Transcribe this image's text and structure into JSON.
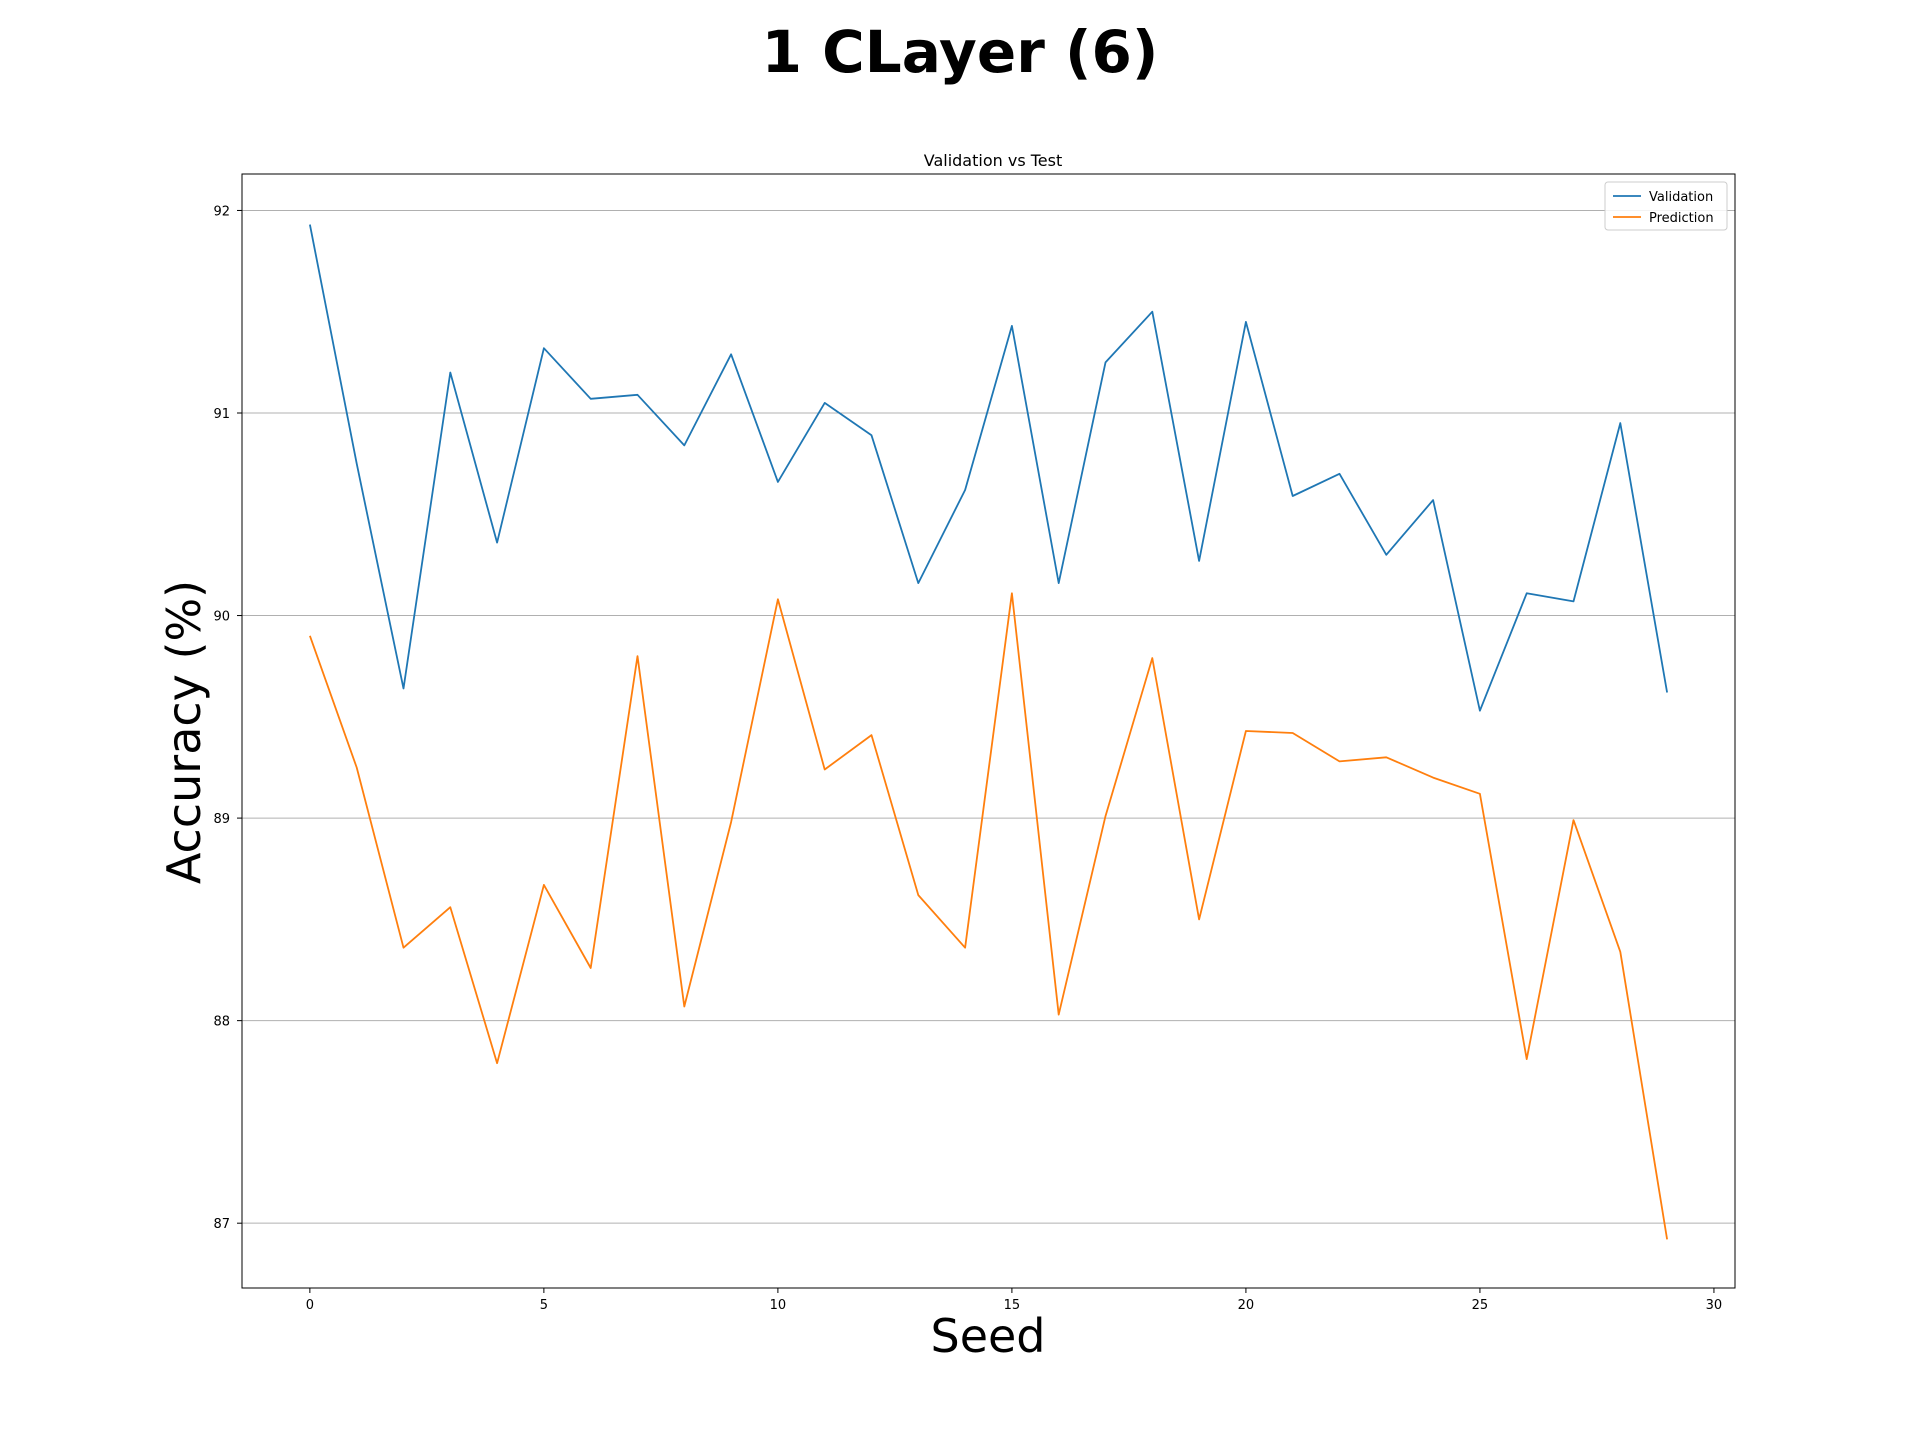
{
  "figure": {
    "suptitle": "1 CLayer (6)"
  },
  "chart_data": {
    "type": "line",
    "title": "Validation vs Test",
    "xlabel": "Seed",
    "ylabel": "Accuracy (%)",
    "xlim": [
      -1.45,
      30.45
    ],
    "ylim": [
      86.68,
      92.18
    ],
    "xticks": [
      0,
      5,
      10,
      15,
      20,
      25,
      30
    ],
    "yticks": [
      87,
      88,
      89,
      90,
      91,
      92
    ],
    "grid": "y",
    "legend_position": "top-right",
    "x": [
      0,
      1,
      2,
      3,
      4,
      5,
      6,
      7,
      8,
      9,
      10,
      11,
      12,
      13,
      14,
      15,
      16,
      17,
      18,
      19,
      20,
      21,
      22,
      23,
      24,
      25,
      26,
      27,
      28,
      29
    ],
    "series": [
      {
        "name": "Validation",
        "color": "#1f77b4",
        "values": [
          91.93,
          90.75,
          89.64,
          91.2,
          90.36,
          91.32,
          91.07,
          91.09,
          90.84,
          91.29,
          90.66,
          91.05,
          90.89,
          90.16,
          90.62,
          91.43,
          90.16,
          91.25,
          91.5,
          90.27,
          91.45,
          90.59,
          90.7,
          90.3,
          90.57,
          89.53,
          90.11,
          90.07,
          90.95,
          89.62
        ]
      },
      {
        "name": "Prediction",
        "color": "#ff7f0e",
        "values": [
          89.9,
          89.25,
          88.36,
          88.56,
          87.79,
          88.67,
          88.26,
          89.8,
          88.07,
          88.98,
          90.08,
          89.24,
          89.41,
          88.62,
          88.36,
          90.11,
          88.03,
          89.01,
          89.79,
          88.5,
          89.43,
          89.42,
          89.28,
          89.3,
          89.2,
          89.12,
          87.81,
          88.99,
          88.34,
          86.92
        ]
      }
    ]
  }
}
